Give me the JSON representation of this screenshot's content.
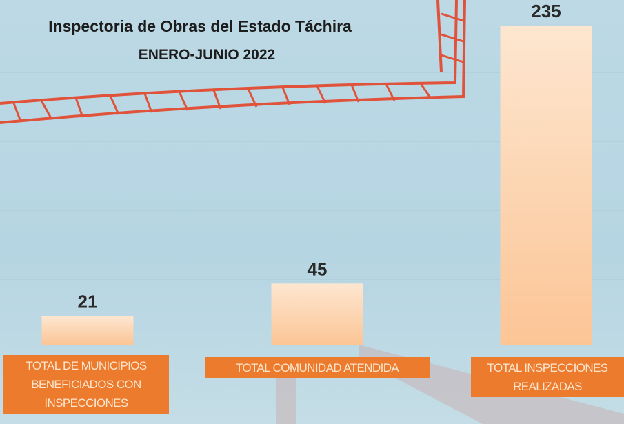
{
  "chart_data": {
    "type": "bar",
    "title": "Inspectoria de Obras del Estado Táchira",
    "subtitle": "ENERO-JUNIO 2022",
    "categories": [
      "TOTAL DE MUNICIPIOS BENEFICIADOS CON INSPECCIONES",
      "TOTAL COMUNIDAD ATENDIDA",
      "TOTAL INSPECCIONES REALIZADAS"
    ],
    "values": [
      21,
      45,
      235
    ],
    "color": "#fdd2ab"
  }
}
